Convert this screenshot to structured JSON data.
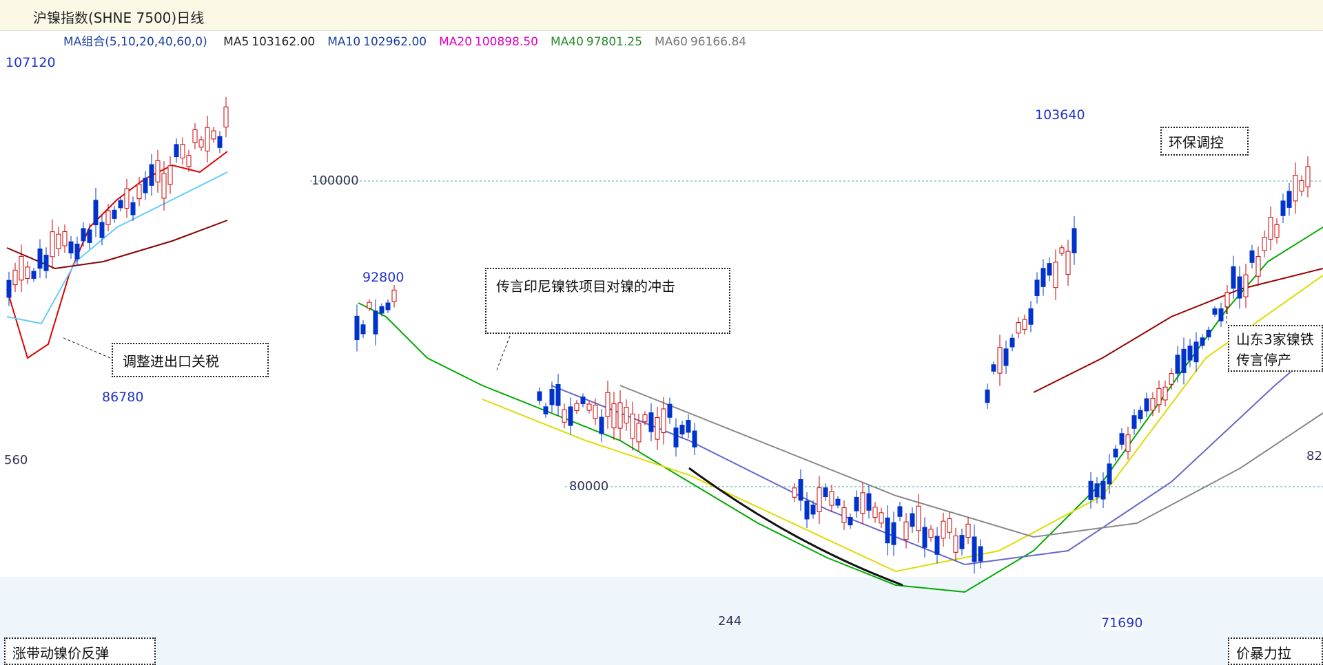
{
  "header": {
    "title": "沪镍指数(SHNE 7500)日线"
  },
  "legend": {
    "label": "MA组合(5,10,20,40,60,0)",
    "items": [
      {
        "name": "MA5",
        "value": "103162.00"
      },
      {
        "name": "MA10",
        "value": "102962.00"
      },
      {
        "name": "MA20",
        "value": "100898.50"
      },
      {
        "name": "MA40",
        "value": "97801.25"
      },
      {
        "name": "MA60",
        "value": "96166.84"
      }
    ]
  },
  "price_labels": [
    "107120",
    "103640",
    "92800",
    "86780",
    "71690"
  ],
  "axis_labels": [
    "100000",
    "80000",
    "82",
    "560",
    "244"
  ],
  "annotations": [
    "传言印尼镍铁项目对镍的冲击",
    "调整进出口关税",
    "山东3家镍铁传言停产",
    "环保调控",
    "涨带动镍价反弹",
    "价暴力拉"
  ]
}
